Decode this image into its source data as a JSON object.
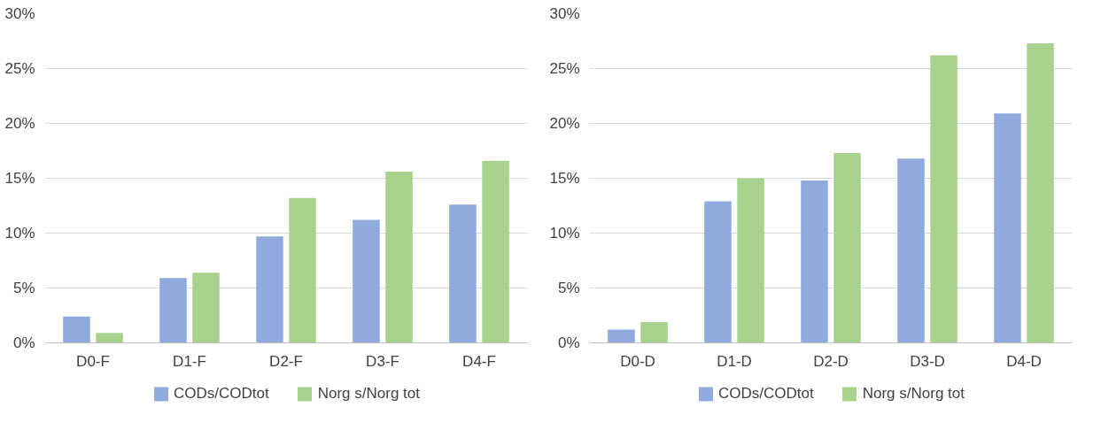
{
  "chart_data": [
    {
      "type": "bar",
      "categories": [
        "D0-F",
        "D1-F",
        "D2-F",
        "D3-F",
        "D4-F"
      ],
      "series": [
        {
          "name": "CODs/CODtot",
          "color": "#8faadc",
          "values": [
            2.4,
            5.9,
            9.7,
            11.2,
            12.6
          ]
        },
        {
          "name": "Norg s/Norg tot",
          "color": "#a9d18e",
          "values": [
            0.9,
            6.4,
            13.2,
            15.6,
            16.6
          ]
        }
      ],
      "ylim": [
        0,
        30
      ],
      "yticks": [
        {
          "value": 0,
          "label": "0%"
        },
        {
          "value": 5,
          "label": "5%"
        },
        {
          "value": 10,
          "label": "10%"
        },
        {
          "value": 15,
          "label": "15%"
        },
        {
          "value": 20,
          "label": "20%"
        },
        {
          "value": 25,
          "label": "25%"
        },
        {
          "value": 30,
          "label": "30%"
        }
      ],
      "grid": "y",
      "legend": "bottom"
    },
    {
      "type": "bar",
      "categories": [
        "D0-D",
        "D1-D",
        "D2-D",
        "D3-D",
        "D4-D"
      ],
      "series": [
        {
          "name": "CODs/CODtot",
          "color": "#8faadc",
          "values": [
            1.2,
            12.9,
            14.8,
            16.8,
            20.9
          ]
        },
        {
          "name": "Norg s/Norg tot",
          "color": "#a9d18e",
          "values": [
            1.9,
            15.0,
            17.3,
            26.2,
            27.3
          ]
        }
      ],
      "ylim": [
        0,
        30
      ],
      "yticks": [
        {
          "value": 0,
          "label": "0%"
        },
        {
          "value": 5,
          "label": "5%"
        },
        {
          "value": 10,
          "label": "10%"
        },
        {
          "value": 15,
          "label": "15%"
        },
        {
          "value": 20,
          "label": "20%"
        },
        {
          "value": 25,
          "label": "25%"
        },
        {
          "value": 30,
          "label": "30%"
        }
      ],
      "grid": "y",
      "legend": "bottom"
    }
  ]
}
